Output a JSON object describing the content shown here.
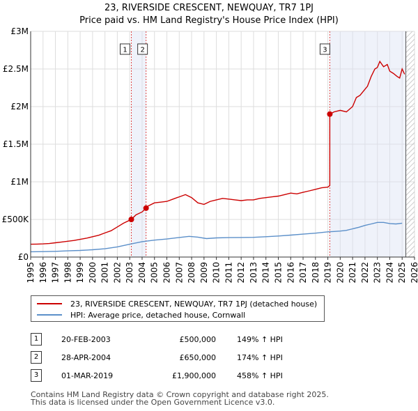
{
  "chart_data": {
    "type": "line",
    "title": "23, RIVERSIDE CRESCENT, NEWQUAY, TR7 1PJ",
    "subtitle": "Price paid vs. HM Land Registry's House Price Index (HPI)",
    "xlabel": "",
    "ylabel": "",
    "xlim": [
      1995,
      2026
    ],
    "ylim": [
      0,
      3000000
    ],
    "x_ticks": [
      "1995",
      "1996",
      "1997",
      "1998",
      "1999",
      "2000",
      "2001",
      "2002",
      "2003",
      "2004",
      "2005",
      "2006",
      "2007",
      "2008",
      "2009",
      "2010",
      "2011",
      "2012",
      "2013",
      "2014",
      "2015",
      "2016",
      "2017",
      "2018",
      "2019",
      "2020",
      "2021",
      "2022",
      "2023",
      "2024",
      "2025",
      "2026"
    ],
    "y_ticks": [
      {
        "value": 0,
        "label": "£0"
      },
      {
        "value": 500000,
        "label": "£500K"
      },
      {
        "value": 1000000,
        "label": "£1M"
      },
      {
        "value": 1500000,
        "label": "£1.5M"
      },
      {
        "value": 2000000,
        "label": "£2M"
      },
      {
        "value": 2500000,
        "label": "£2.5M"
      },
      {
        "value": 3000000,
        "label": "£3M"
      }
    ],
    "grid": true,
    "series": [
      {
        "name": "23, RIVERSIDE CRESCENT, NEWQUAY, TR7 1PJ (detached house)",
        "color": "#cc0000",
        "x": [
          1995.0,
          1995.5,
          1996.0,
          1996.5,
          1997.0,
          1997.5,
          1998.0,
          1998.5,
          1999.0,
          1999.5,
          2000.0,
          2000.5,
          2001.0,
          2001.5,
          2002.0,
          2002.5,
          2003.13,
          2003.5,
          2004.0,
          2004.32,
          2004.5,
          2005.0,
          2005.5,
          2006.0,
          2006.5,
          2007.0,
          2007.5,
          2008.0,
          2008.5,
          2009.0,
          2009.5,
          2010.0,
          2010.5,
          2011.0,
          2011.5,
          2012.0,
          2012.5,
          2013.0,
          2013.5,
          2014.0,
          2014.5,
          2015.0,
          2015.5,
          2016.0,
          2016.5,
          2017.0,
          2017.5,
          2018.0,
          2018.5,
          2019.0,
          2019.16,
          2019.16,
          2019.5,
          2020.0,
          2020.5,
          2021.0,
          2021.3,
          2021.6,
          2021.9,
          2022.2,
          2022.5,
          2022.8,
          2023.0,
          2023.2,
          2023.5,
          2023.8,
          2024.0,
          2024.3,
          2024.6,
          2024.8,
          2025.0,
          2025.2
        ],
        "values": [
          170000,
          172000,
          175000,
          180000,
          190000,
          200000,
          210000,
          220000,
          235000,
          250000,
          270000,
          290000,
          320000,
          350000,
          400000,
          450000,
          500000,
          560000,
          600000,
          650000,
          680000,
          720000,
          730000,
          740000,
          770000,
          800000,
          830000,
          790000,
          720000,
          700000,
          740000,
          760000,
          780000,
          770000,
          760000,
          750000,
          760000,
          760000,
          780000,
          790000,
          800000,
          810000,
          830000,
          850000,
          840000,
          860000,
          880000,
          900000,
          920000,
          930000,
          950000,
          1900000,
          1930000,
          1950000,
          1930000,
          2000000,
          2120000,
          2150000,
          2210000,
          2270000,
          2400000,
          2500000,
          2520000,
          2600000,
          2530000,
          2560000,
          2470000,
          2440000,
          2400000,
          2380000,
          2500000,
          2430000
        ],
        "sales": [
          {
            "x": 2003.13,
            "value": 500000,
            "label": "1"
          },
          {
            "x": 2004.32,
            "value": 650000,
            "label": "2"
          },
          {
            "x": 2019.16,
            "value": 1900000,
            "label": "3"
          }
        ]
      },
      {
        "name": "HPI: Average price, detached house, Cornwall",
        "color": "#5b8fc9",
        "x": [
          1995.0,
          1996.0,
          1997.0,
          1998.0,
          1999.0,
          2000.0,
          2001.0,
          2002.0,
          2003.0,
          2004.0,
          2005.0,
          2006.0,
          2007.0,
          2007.8,
          2008.5,
          2009.2,
          2010.0,
          2011.0,
          2012.0,
          2013.0,
          2014.0,
          2015.0,
          2016.0,
          2017.0,
          2018.0,
          2019.0,
          2019.5,
          2020.0,
          2020.5,
          2021.0,
          2021.5,
          2022.0,
          2022.5,
          2023.0,
          2023.5,
          2024.0,
          2024.5,
          2025.0
        ],
        "values": [
          70000,
          72000,
          76000,
          82000,
          88000,
          97000,
          110000,
          135000,
          170000,
          205000,
          225000,
          240000,
          260000,
          275000,
          265000,
          245000,
          255000,
          258000,
          260000,
          262000,
          270000,
          280000,
          292000,
          305000,
          318000,
          335000,
          340000,
          345000,
          355000,
          375000,
          395000,
          420000,
          440000,
          460000,
          460000,
          445000,
          440000,
          450000
        ]
      }
    ],
    "annotations": [
      {
        "label": "1",
        "x": 2003.13
      },
      {
        "label": "2",
        "x": 2004.32
      },
      {
        "label": "3",
        "x": 2019.16
      }
    ],
    "shaded_regions": [
      {
        "from": 2003.13,
        "to": 2004.32
      },
      {
        "from": 2019.16,
        "to": 2025.3
      }
    ],
    "hatched_from": 2025.3
  },
  "legend": {
    "property_label": "23, RIVERSIDE CRESCENT, NEWQUAY, TR7 1PJ (detached house)",
    "hpi_label": "HPI: Average price, detached house, Cornwall",
    "property_color": "#cc0000",
    "hpi_color": "#5b8fc9"
  },
  "transactions": [
    {
      "num": "1",
      "date": "20-FEB-2003",
      "price": "£500,000",
      "hpi": "149% ↑ HPI"
    },
    {
      "num": "2",
      "date": "28-APR-2004",
      "price": "£650,000",
      "hpi": "174% ↑ HPI"
    },
    {
      "num": "3",
      "date": "01-MAR-2019",
      "price": "£1,900,000",
      "hpi": "458% ↑ HPI"
    }
  ],
  "footer": {
    "line1": "Contains HM Land Registry data © Crown copyright and database right 2025.",
    "line2": "This data is licensed under the Open Government Licence v3.0."
  }
}
